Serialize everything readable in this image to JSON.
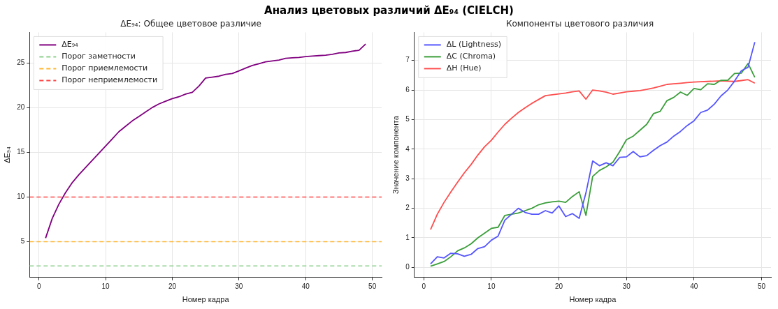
{
  "chart_data": [
    {
      "type": "line",
      "title": "Анализ цветовых различий ΔE₉₄ (CIELCH)",
      "subtitle": "ΔE₉₄: Общее цветовое различие",
      "xlabel": "Номер кадра",
      "ylabel": "ΔE₉₄",
      "x": [
        1,
        2,
        3,
        4,
        5,
        6,
        7,
        8,
        9,
        10,
        11,
        12,
        13,
        14,
        15,
        16,
        17,
        18,
        19,
        20,
        21,
        22,
        23,
        24,
        25,
        26,
        27,
        28,
        29,
        30,
        31,
        32,
        33,
        34,
        35,
        36,
        37,
        38,
        39,
        40,
        41,
        42,
        43,
        44,
        45,
        46,
        47,
        48,
        49
      ],
      "series": [
        {
          "name": "ΔE₉₄",
          "color": "#800080",
          "values": [
            5.4,
            7.6,
            9.2,
            10.5,
            11.6,
            12.5,
            13.3,
            14.1,
            14.9,
            15.7,
            16.5,
            17.3,
            17.9,
            18.5,
            19.0,
            19.5,
            20.0,
            20.4,
            20.7,
            21.0,
            21.2,
            21.5,
            21.7,
            22.4,
            23.3,
            23.4,
            23.5,
            23.7,
            23.8,
            24.1,
            24.4,
            24.7,
            24.9,
            25.1,
            25.2,
            25.3,
            25.5,
            25.55,
            25.6,
            25.7,
            25.75,
            25.8,
            25.85,
            25.95,
            26.1,
            26.15,
            26.3,
            26.4,
            27.1
          ]
        }
      ],
      "ref_lines": [
        {
          "axis": "y",
          "value": 2.3,
          "label": "Порог заметности",
          "color": "#90d090",
          "line_style": "dashed"
        },
        {
          "axis": "y",
          "value": 5,
          "label": "Порог приемлемости",
          "color": "#ffb833",
          "line_style": "dashed"
        },
        {
          "axis": "y",
          "value": 10,
          "label": "Порог неприемлемости",
          "color": "#ff4444",
          "line_style": "dashed"
        }
      ],
      "xlim": [
        -1.4,
        51.4
      ],
      "xticks": [
        0,
        10,
        20,
        30,
        40,
        50
      ],
      "ylim": [
        1,
        28.4
      ],
      "yticks": [
        5,
        10,
        15,
        20,
        25
      ],
      "grid": true,
      "legend": "top left",
      "line_style": "solid",
      "marker": "none"
    },
    {
      "type": "line",
      "subtitle": "Компоненты цветового различия",
      "xlabel": "Номер кадра",
      "ylabel": "Значение компонента",
      "x": [
        1,
        2,
        3,
        4,
        5,
        6,
        7,
        8,
        9,
        10,
        11,
        12,
        13,
        14,
        15,
        16,
        17,
        18,
        19,
        20,
        21,
        22,
        23,
        24,
        25,
        26,
        27,
        28,
        29,
        30,
        31,
        32,
        33,
        34,
        35,
        36,
        37,
        38,
        39,
        40,
        41,
        42,
        43,
        44,
        45,
        46,
        47,
        48,
        49
      ],
      "series": [
        {
          "name": "ΔL (Lightness)",
          "color": "#5555ff",
          "values": [
            0.12,
            0.36,
            0.32,
            0.48,
            0.46,
            0.38,
            0.44,
            0.64,
            0.7,
            0.92,
            1.06,
            1.6,
            1.8,
            2.0,
            1.86,
            1.8,
            1.8,
            1.92,
            1.84,
            2.08,
            1.72,
            1.82,
            1.66,
            2.52,
            3.6,
            3.44,
            3.54,
            3.44,
            3.72,
            3.74,
            3.92,
            3.74,
            3.78,
            3.96,
            4.12,
            4.24,
            4.44,
            4.6,
            4.8,
            4.96,
            5.24,
            5.32,
            5.52,
            5.8,
            6.0,
            6.3,
            6.65,
            6.77,
            7.62
          ]
        },
        {
          "name": "ΔC (Chroma)",
          "color": "#3a9e3a",
          "values": [
            0.04,
            0.12,
            0.2,
            0.36,
            0.56,
            0.66,
            0.8,
            1.0,
            1.16,
            1.32,
            1.36,
            1.76,
            1.8,
            1.84,
            1.92,
            2.0,
            2.12,
            2.18,
            2.22,
            2.24,
            2.2,
            2.4,
            2.56,
            1.76,
            3.08,
            3.28,
            3.4,
            3.56,
            3.92,
            4.32,
            4.44,
            4.64,
            4.84,
            5.2,
            5.28,
            5.64,
            5.75,
            5.93,
            5.82,
            6.05,
            6.01,
            6.21,
            6.19,
            6.33,
            6.33,
            6.56,
            6.57,
            6.9,
            6.43
          ]
        },
        {
          "name": "ΔH (Hue)",
          "color": "#ff4d4d",
          "values": [
            1.28,
            1.8,
            2.2,
            2.55,
            2.88,
            3.2,
            3.48,
            3.8,
            4.08,
            4.3,
            4.58,
            4.84,
            5.05,
            5.24,
            5.4,
            5.55,
            5.68,
            5.81,
            5.84,
            5.87,
            5.9,
            5.94,
            5.97,
            5.69,
            6.0,
            5.97,
            5.93,
            5.86,
            5.9,
            5.94,
            5.96,
            5.98,
            6.02,
            6.07,
            6.13,
            6.19,
            6.21,
            6.23,
            6.25,
            6.27,
            6.28,
            6.29,
            6.3,
            6.31,
            6.3,
            6.29,
            6.32,
            6.35,
            6.23
          ]
        }
      ],
      "xlim": [
        -1.4,
        51.4
      ],
      "xticks": [
        0,
        10,
        20,
        30,
        40,
        50
      ],
      "ylim": [
        -0.34,
        7.95
      ],
      "yticks": [
        0,
        1,
        2,
        3,
        4,
        5,
        6,
        7
      ],
      "grid": true,
      "legend": "top left",
      "line_style": "solid",
      "marker": "none"
    }
  ]
}
